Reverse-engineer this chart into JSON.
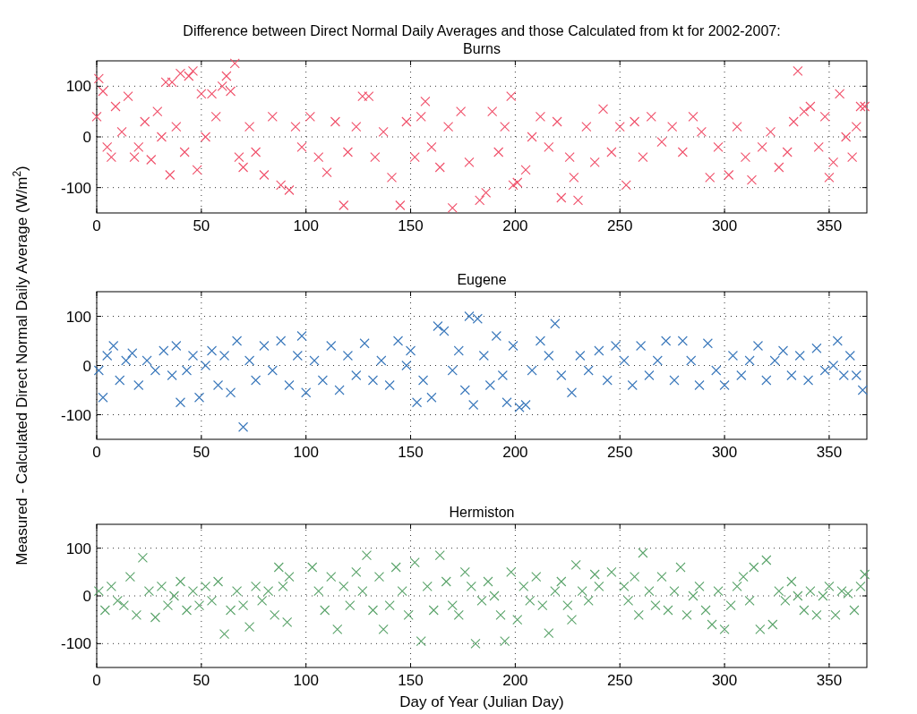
{
  "chart_data": [
    {
      "type": "scatter",
      "title": "Difference between Direct Normal Daily Averages and those Calculated from kt for 2002-2007:",
      "subtitle": "Burns",
      "marker": "cross",
      "grid": true,
      "xlim": [
        0,
        368
      ],
      "ylim": [
        -150,
        150
      ],
      "xticks": [
        0,
        50,
        100,
        150,
        200,
        250,
        300,
        350
      ],
      "yticks": [
        -100,
        0,
        100
      ],
      "series": [
        {
          "color": "#f0506a",
          "x": [
            0,
            1,
            3,
            5,
            7,
            9,
            12,
            15,
            18,
            20,
            23,
            26,
            29,
            31,
            33,
            35,
            36,
            38,
            40,
            42,
            44,
            46,
            48,
            50,
            52,
            55,
            57,
            60,
            62,
            64,
            66,
            68,
            70,
            73,
            76,
            80,
            84,
            88,
            92,
            95,
            98,
            102,
            106,
            110,
            114,
            118,
            120,
            124,
            127,
            130,
            133,
            137,
            141,
            145,
            148,
            152,
            155,
            157,
            160,
            164,
            168,
            170,
            174,
            178,
            183,
            186,
            189,
            192,
            195,
            198,
            199,
            201,
            205,
            208,
            212,
            216,
            220,
            222,
            226,
            228,
            230,
            234,
            238,
            242,
            246,
            250,
            253,
            257,
            261,
            265,
            270,
            275,
            280,
            285,
            289,
            293,
            297,
            302,
            306,
            310,
            313,
            318,
            322,
            326,
            330,
            333,
            335,
            338,
            341,
            345,
            348,
            350,
            352,
            355,
            358,
            361,
            363,
            365,
            367
          ],
          "values": [
            40,
            115,
            90,
            -20,
            -40,
            60,
            10,
            80,
            -40,
            -20,
            30,
            -45,
            50,
            0,
            108,
            -75,
            108,
            20,
            125,
            -30,
            120,
            130,
            -65,
            85,
            0,
            85,
            40,
            100,
            120,
            90,
            145,
            -40,
            -60,
            20,
            -30,
            -75,
            40,
            -95,
            -105,
            20,
            -20,
            40,
            -40,
            -70,
            30,
            -135,
            -30,
            20,
            80,
            80,
            -40,
            10,
            -80,
            -135,
            30,
            -40,
            40,
            70,
            -20,
            -60,
            20,
            -140,
            50,
            -50,
            -125,
            -110,
            50,
            -30,
            20,
            80,
            -95,
            -90,
            -65,
            0,
            40,
            -20,
            30,
            -120,
            -40,
            -80,
            -125,
            20,
            -50,
            55,
            -30,
            20,
            -95,
            30,
            -40,
            40,
            -10,
            20,
            -30,
            40,
            10,
            -80,
            -20,
            -75,
            20,
            -40,
            -85,
            -20,
            10,
            -60,
            -30,
            30,
            130,
            50,
            60,
            -20,
            40,
            -80,
            -50,
            85,
            0,
            -40,
            20,
            60,
            60
          ]
        }
      ]
    },
    {
      "type": "scatter",
      "title": "Eugene",
      "ylabel": "Measured - Calculated Direct Normal Daily Average (W/m$^{2}$)",
      "marker": "cross",
      "grid": true,
      "xlim": [
        0,
        368
      ],
      "ylim": [
        -150,
        150
      ],
      "xticks": [
        0,
        50,
        100,
        150,
        200,
        250,
        300,
        350
      ],
      "yticks": [
        -100,
        0,
        100
      ],
      "series": [
        {
          "color": "#3a78bb",
          "x": [
            1,
            3,
            5,
            8,
            11,
            14,
            17,
            20,
            24,
            28,
            32,
            36,
            38,
            40,
            43,
            46,
            49,
            52,
            55,
            58,
            61,
            64,
            67,
            70,
            73,
            76,
            80,
            84,
            88,
            92,
            96,
            98,
            100,
            104,
            108,
            112,
            116,
            120,
            124,
            128,
            132,
            136,
            140,
            144,
            148,
            150,
            153,
            156,
            160,
            163,
            166,
            170,
            173,
            176,
            178,
            180,
            182,
            185,
            188,
            191,
            194,
            196,
            199,
            202,
            205,
            208,
            212,
            216,
            219,
            222,
            227,
            231,
            235,
            240,
            244,
            248,
            252,
            256,
            260,
            264,
            268,
            272,
            276,
            280,
            284,
            288,
            292,
            296,
            300,
            304,
            308,
            312,
            316,
            320,
            324,
            328,
            332,
            336,
            340,
            344,
            348,
            352,
            354,
            357,
            360,
            363,
            366
          ],
          "values": [
            -10,
            -65,
            20,
            40,
            -30,
            10,
            25,
            -40,
            10,
            -10,
            30,
            -20,
            40,
            -75,
            -10,
            20,
            -65,
            0,
            30,
            -40,
            20,
            -55,
            50,
            -125,
            10,
            -30,
            40,
            -10,
            50,
            -40,
            20,
            60,
            -55,
            10,
            -30,
            40,
            -50,
            20,
            -20,
            45,
            -30,
            10,
            -40,
            50,
            0,
            30,
            -75,
            -30,
            -65,
            80,
            70,
            -10,
            30,
            -50,
            100,
            -80,
            95,
            20,
            -40,
            60,
            -20,
            -75,
            40,
            -85,
            -80,
            -10,
            50,
            20,
            85,
            -20,
            -55,
            20,
            -10,
            30,
            -30,
            40,
            10,
            -40,
            40,
            -20,
            10,
            50,
            -30,
            50,
            10,
            -40,
            45,
            -10,
            -40,
            20,
            -20,
            10,
            40,
            -30,
            10,
            30,
            -20,
            20,
            -30,
            35,
            -10,
            0,
            50,
            -20,
            20,
            -20,
            -50
          ]
        }
      ]
    },
    {
      "type": "scatter",
      "title": "Hermiston",
      "xlabel": "Day of Year (Julian Day)",
      "marker": "cross",
      "grid": true,
      "xlim": [
        0,
        368
      ],
      "ylim": [
        -150,
        150
      ],
      "xticks": [
        0,
        50,
        100,
        150,
        200,
        250,
        300,
        350
      ],
      "yticks": [
        -100,
        0,
        100
      ],
      "series": [
        {
          "color": "#5aa36a",
          "x": [
            1,
            4,
            7,
            10,
            13,
            16,
            19,
            22,
            25,
            28,
            31,
            34,
            37,
            40,
            43,
            46,
            49,
            52,
            55,
            58,
            61,
            64,
            67,
            70,
            73,
            76,
            79,
            82,
            85,
            87,
            89,
            91,
            92,
            103,
            106,
            109,
            112,
            115,
            118,
            121,
            124,
            127,
            129,
            132,
            135,
            137,
            140,
            143,
            146,
            149,
            152,
            155,
            158,
            161,
            164,
            167,
            170,
            173,
            176,
            179,
            181,
            184,
            187,
            190,
            193,
            195,
            198,
            201,
            204,
            207,
            210,
            213,
            216,
            219,
            222,
            225,
            227,
            229,
            232,
            235,
            238,
            240,
            246,
            252,
            254,
            257,
            259,
            261,
            264,
            267,
            270,
            273,
            276,
            279,
            282,
            285,
            288,
            291,
            294,
            297,
            300,
            303,
            306,
            309,
            312,
            314,
            317,
            320,
            323,
            326,
            329,
            332,
            335,
            338,
            341,
            344,
            347,
            350,
            353,
            356,
            359,
            362,
            365,
            367
          ],
          "values": [
            10,
            -30,
            20,
            -10,
            -20,
            40,
            -40,
            80,
            10,
            -45,
            20,
            -20,
            0,
            30,
            -30,
            10,
            -20,
            20,
            -10,
            30,
            -80,
            -30,
            10,
            -20,
            -65,
            20,
            -10,
            10,
            -40,
            60,
            20,
            -55,
            40,
            60,
            10,
            -30,
            40,
            -70,
            20,
            -20,
            50,
            10,
            85,
            -30,
            40,
            -70,
            -20,
            60,
            10,
            -40,
            70,
            -95,
            20,
            -30,
            85,
            30,
            -20,
            -40,
            50,
            20,
            -100,
            -10,
            30,
            0,
            -40,
            -95,
            50,
            -50,
            20,
            -10,
            40,
            -20,
            -78,
            10,
            30,
            -20,
            -50,
            65,
            10,
            -10,
            45,
            20,
            50,
            20,
            -10,
            40,
            -40,
            90,
            10,
            -20,
            40,
            -30,
            10,
            60,
            -40,
            0,
            20,
            -30,
            -60,
            10,
            -70,
            -20,
            20,
            40,
            -10,
            60,
            -70,
            75,
            -60,
            10,
            -10,
            30,
            0,
            -30,
            10,
            -40,
            0,
            20,
            -40,
            10,
            5,
            -30,
            20,
            45
          ]
        }
      ]
    }
  ]
}
